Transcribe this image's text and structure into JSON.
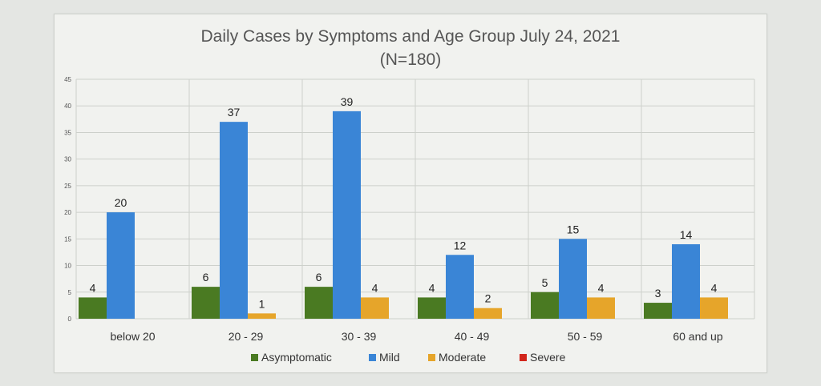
{
  "chart_data": {
    "type": "bar",
    "title": "Daily Cases by Symptoms and Age Group July 24, 2021",
    "subtitle": "(N=180)",
    "categories": [
      "below 20",
      "20 - 29",
      "30 - 39",
      "40 - 49",
      "50 - 59",
      "60 and up"
    ],
    "series": [
      {
        "name": "Asymptomatic",
        "color": "#4a7a22",
        "values": [
          4,
          6,
          6,
          4,
          5,
          3
        ]
      },
      {
        "name": "Mild",
        "color": "#3a85d6",
        "values": [
          20,
          37,
          39,
          12,
          15,
          14
        ]
      },
      {
        "name": "Moderate",
        "color": "#e6a52a",
        "values": [
          null,
          1,
          4,
          2,
          4,
          4
        ]
      },
      {
        "name": "Severe",
        "color": "#d2261c",
        "values": [
          null,
          null,
          null,
          null,
          null,
          null
        ]
      }
    ],
    "ylim": [
      0,
      45
    ],
    "yticks": [
      0,
      5,
      10,
      15,
      20,
      25,
      30,
      35,
      40,
      45
    ],
    "grid": true,
    "legend_position": "bottom"
  }
}
